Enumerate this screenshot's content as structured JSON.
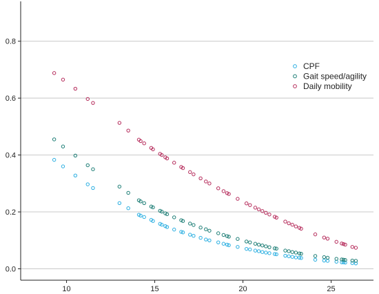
{
  "chart_data": {
    "type": "scatter",
    "xlim": [
      7.4,
      27.4
    ],
    "ylim": [
      -0.04,
      0.94
    ],
    "grid": true,
    "legend_position": "top-right",
    "x_ticks": [
      10,
      15,
      20,
      25
    ],
    "y_ticks": [
      0.0,
      0.2,
      0.4,
      0.6,
      0.8
    ],
    "x_tick_labels": [
      "10",
      "15",
      "20",
      "25"
    ],
    "y_tick_labels": [
      "0.0",
      "0.2",
      "0.4",
      "0.6",
      "0.8"
    ],
    "x": [
      9.3,
      9.8,
      10.5,
      11.2,
      11.5,
      13.0,
      13.5,
      14.1,
      14.2,
      14.4,
      14.8,
      14.9,
      15.3,
      15.4,
      15.6,
      15.7,
      16.1,
      16.5,
      16.6,
      17.0,
      17.2,
      17.6,
      17.9,
      18.1,
      18.6,
      18.9,
      19.1,
      19.2,
      19.7,
      20.2,
      20.4,
      20.7,
      20.9,
      21.1,
      21.3,
      21.5,
      21.8,
      21.9,
      22.4,
      22.6,
      22.8,
      23.0,
      23.2,
      23.3,
      24.1,
      24.6,
      24.8,
      25.3,
      25.6,
      25.7,
      25.8,
      26.2,
      26.4
    ],
    "series": [
      {
        "name": "CPF",
        "color": "#29aee1",
        "values": [
          0.383,
          0.36,
          0.328,
          0.297,
          0.284,
          0.231,
          0.213,
          0.19,
          0.187,
          0.182,
          0.172,
          0.168,
          0.158,
          0.155,
          0.15,
          0.147,
          0.138,
          0.13,
          0.128,
          0.12,
          0.116,
          0.109,
          0.103,
          0.1,
          0.093,
          0.088,
          0.085,
          0.083,
          0.077,
          0.07,
          0.068,
          0.064,
          0.062,
          0.059,
          0.057,
          0.055,
          0.052,
          0.051,
          0.046,
          0.044,
          0.042,
          0.04,
          0.039,
          0.038,
          0.032,
          0.029,
          0.028,
          0.025,
          0.023,
          0.023,
          0.022,
          0.02,
          0.019
        ]
      },
      {
        "name": "Gait speed/agility",
        "color": "#1a7c74",
        "values": [
          0.455,
          0.43,
          0.398,
          0.364,
          0.35,
          0.289,
          0.267,
          0.241,
          0.237,
          0.231,
          0.219,
          0.216,
          0.204,
          0.201,
          0.195,
          0.192,
          0.181,
          0.171,
          0.168,
          0.159,
          0.154,
          0.145,
          0.139,
          0.134,
          0.125,
          0.119,
          0.115,
          0.113,
          0.105,
          0.096,
          0.093,
          0.088,
          0.085,
          0.082,
          0.079,
          0.076,
          0.072,
          0.071,
          0.064,
          0.062,
          0.059,
          0.057,
          0.054,
          0.053,
          0.045,
          0.041,
          0.039,
          0.035,
          0.033,
          0.032,
          0.031,
          0.029,
          0.028
        ]
      },
      {
        "name": "Daily mobility",
        "color": "#b52a5a",
        "values": [
          0.688,
          0.665,
          0.633,
          0.597,
          0.583,
          0.513,
          0.486,
          0.454,
          0.449,
          0.441,
          0.425,
          0.42,
          0.404,
          0.4,
          0.392,
          0.388,
          0.373,
          0.358,
          0.354,
          0.34,
          0.332,
          0.318,
          0.307,
          0.3,
          0.283,
          0.273,
          0.266,
          0.263,
          0.246,
          0.23,
          0.224,
          0.215,
          0.209,
          0.203,
          0.197,
          0.191,
          0.183,
          0.18,
          0.166,
          0.16,
          0.155,
          0.149,
          0.144,
          0.141,
          0.121,
          0.11,
          0.106,
          0.095,
          0.089,
          0.087,
          0.085,
          0.077,
          0.074
        ]
      }
    ]
  }
}
